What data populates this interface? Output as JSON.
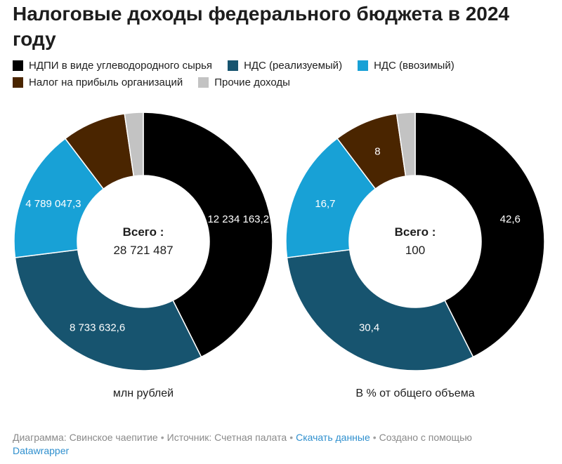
{
  "title": "Налоговые доходы федерального бюджета в 2024 году",
  "legend": [
    {
      "label": "НДПИ в виде углеводородного сырья",
      "color": "#000000"
    },
    {
      "label": "НДС (реализуемый)",
      "color": "#17546f"
    },
    {
      "label": "НДС (ввозимый)",
      "color": "#18a1d6"
    },
    {
      "label": "Налог на прибыль организаций",
      "color": "#4a2500"
    },
    {
      "label": "Прочие доходы",
      "color": "#c3c3c3"
    }
  ],
  "chart_data": [
    {
      "type": "pie",
      "variant": "donut",
      "caption": "млн рублей",
      "center_title": "Всего :",
      "center_value": "28 721 487",
      "slices": [
        {
          "name": "НДПИ в виде углеводородного сырья",
          "value": 12234163.2,
          "label": "12 234 163,2",
          "color": "#000000"
        },
        {
          "name": "НДС (реализуемый)",
          "value": 8733632.6,
          "label": "8 733 632,6",
          "color": "#17546f"
        },
        {
          "name": "НДС (ввозимый)",
          "value": 4789047.3,
          "label": "4 789 047,3",
          "color": "#18a1d6"
        },
        {
          "name": "Налог на прибыль организаций",
          "value": 2297719,
          "label": "",
          "color": "#4a2500"
        },
        {
          "name": "Прочие доходы",
          "value": 666924.9,
          "label": "",
          "color": "#c3c3c3"
        }
      ]
    },
    {
      "type": "pie",
      "variant": "donut",
      "caption": "В % от общего объема",
      "center_title": "Всего :",
      "center_value": "100",
      "slices": [
        {
          "name": "НДПИ в виде углеводородного сырья",
          "value": 42.6,
          "label": "42,6",
          "color": "#000000"
        },
        {
          "name": "НДС (реализуемый)",
          "value": 30.4,
          "label": "30,4",
          "color": "#17546f"
        },
        {
          "name": "НДС (ввозимый)",
          "value": 16.7,
          "label": "16,7",
          "color": "#18a1d6"
        },
        {
          "name": "Налог на прибыль организаций",
          "value": 8,
          "label": "8",
          "color": "#4a2500"
        },
        {
          "name": "Прочие доходы",
          "value": 2.3,
          "label": "",
          "color": "#c3c3c3"
        }
      ]
    }
  ],
  "footer": {
    "chart_by": "Диаграмма: Свинское чаепитие",
    "source": "Источник: Счетная палата",
    "download": "Скачать данные",
    "created": "Создано с помощью",
    "tool": "Datawrapper"
  }
}
